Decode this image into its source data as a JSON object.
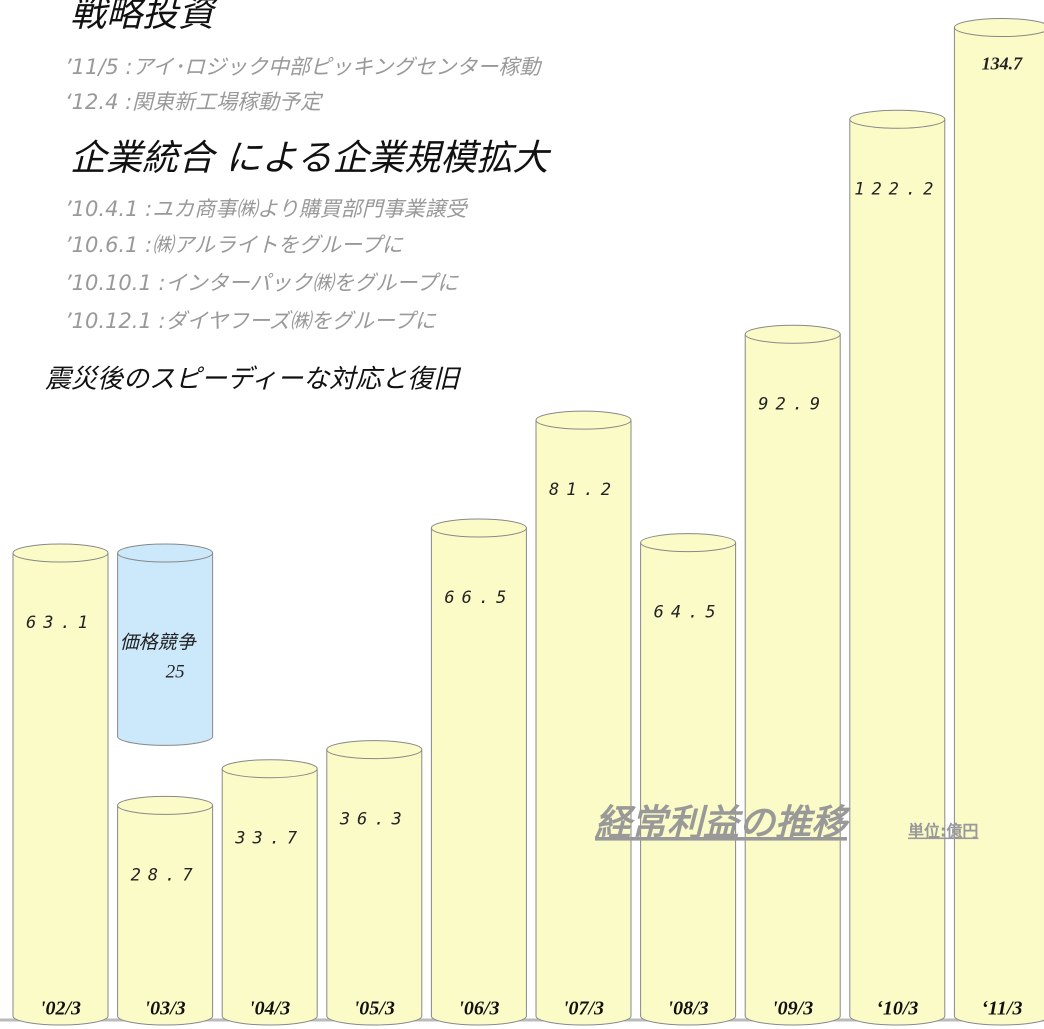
{
  "chart_data": {
    "type": "bar",
    "title": "経常利益の推移",
    "unit": "単位:億円",
    "categories": [
      "'02/3",
      "'03/3",
      "'04/3",
      "'05/3",
      "'06/3",
      "'07/3",
      "'08/3",
      "'09/3",
      "‘10/3",
      "‘11/3"
    ],
    "values": [
      63.1,
      28.7,
      33.7,
      36.3,
      66.5,
      81.2,
      64.5,
      92.9,
      122.2,
      134.7
    ],
    "color": "#fbfbc8",
    "ylim": [
      0,
      136
    ],
    "annotation_bar": {
      "label": "価格競争",
      "value": 25,
      "color": "#cce8fb"
    },
    "notes": [
      {
        "heading": "戦略投資",
        "items": [
          "’11/5 :アイ･ロジック中部ピッキングセンター稼動",
          "‘12.4 :関東新工場稼動予定"
        ]
      },
      {
        "heading": "企業統合 による企業規模拡大",
        "items": [
          "’10.4.1 :ユカ商事㈱より購買部門事業譲受",
          "’10.6.1 :㈱アルライトをグループに",
          "’10.10.1 :インターパック㈱をグループに",
          "’10.12.1 :ダイヤフーズ㈱をグループに"
        ]
      },
      {
        "heading": "震災後のスピーディーな対応と復旧",
        "items": []
      }
    ]
  }
}
